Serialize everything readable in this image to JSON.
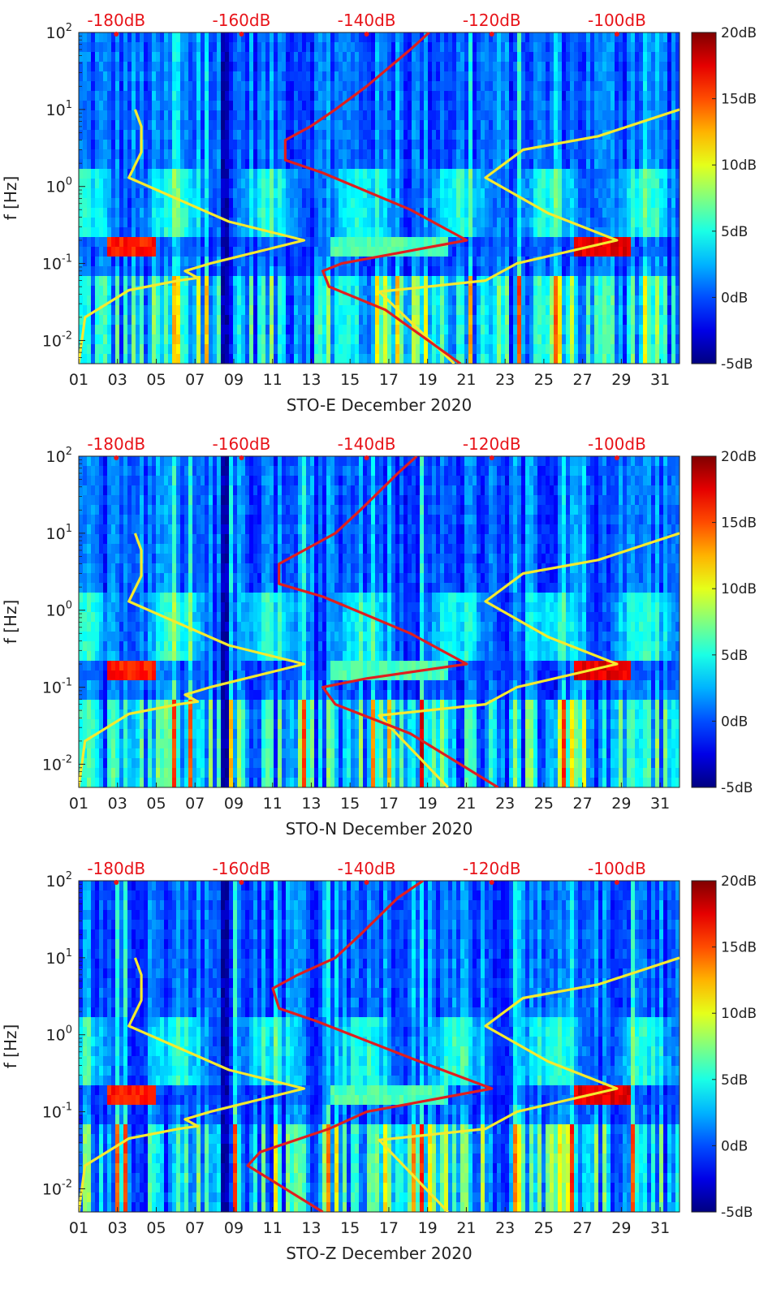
{
  "colors": {
    "colormap": "jet",
    "top_axis_text": "#e8141a",
    "yellow_curve": "#f5ea2e",
    "red_curve": "#e01e1e",
    "axis_text": "#222222"
  },
  "chart_data": [
    {
      "type": "heatmap",
      "title": "",
      "xlabel": "STO-E December 2020",
      "ylabel": "f [Hz]",
      "xlim": [
        1,
        32
      ],
      "ylim": [
        0.005,
        100
      ],
      "yscale": "log",
      "x_ticks": [
        "01",
        "03",
        "05",
        "07",
        "09",
        "11",
        "13",
        "15",
        "17",
        "19",
        "21",
        "23",
        "25",
        "27",
        "29",
        "31"
      ],
      "y_ticks": [
        "10^-2",
        "10^-1",
        "10^0",
        "10^1",
        "10^2"
      ],
      "top_axis": {
        "ticks": [
          "-180dB",
          "-160dB",
          "-140dB",
          "-120dB",
          "-100dB"
        ],
        "range": [
          -186,
          -90
        ]
      },
      "colorbar": {
        "ticks": [
          "-5dB",
          "0dB",
          "5dB",
          "10dB",
          "15dB",
          "20dB"
        ],
        "range": [
          -5,
          20
        ]
      },
      "series": [
        {
          "color": "yellow",
          "axis": "top",
          "points": [
            [
              -186,
              0.005
            ],
            [
              -185,
              0.02
            ],
            [
              -178,
              0.045
            ],
            [
              -170,
              0.06
            ],
            [
              -167,
              0.065
            ],
            [
              -169,
              0.08
            ],
            [
              -165,
              0.1
            ],
            [
              -150,
              0.2
            ],
            [
              -162,
              0.35
            ],
            [
              -178,
              1.3
            ],
            [
              -176,
              2.8
            ],
            [
              -176,
              6
            ],
            [
              -177,
              10
            ]
          ]
        },
        {
          "color": "yellow",
          "axis": "top",
          "points": [
            [
              -126,
              0.005
            ],
            [
              -138,
              0.043
            ],
            [
              -121,
              0.06
            ],
            [
              -116,
              0.1
            ],
            [
              -100,
              0.2
            ],
            [
              -111,
              0.45
            ],
            [
              -121,
              1.3
            ],
            [
              -115,
              3
            ],
            [
              -103,
              4.5
            ],
            [
              -90,
              10
            ]
          ]
        },
        {
          "color": "red",
          "axis": "top",
          "points": [
            [
              -125,
              0.005
            ],
            [
              -137,
              0.025
            ],
            [
              -146,
              0.05
            ],
            [
              -147,
              0.08
            ],
            [
              -144,
              0.1
            ],
            [
              -124,
              0.2
            ],
            [
              -133,
              0.5
            ],
            [
              -147,
              1.5
            ],
            [
              -153,
              2.2
            ],
            [
              -153,
              4
            ],
            [
              -149,
              6
            ],
            [
              -145,
              10
            ],
            [
              -140,
              20
            ],
            [
              -133,
              60
            ],
            [
              -130,
              100
            ]
          ]
        }
      ]
    },
    {
      "type": "heatmap",
      "title": "",
      "xlabel": "STO-N December 2020",
      "ylabel": "f [Hz]",
      "xlim": [
        1,
        32
      ],
      "ylim": [
        0.005,
        100
      ],
      "yscale": "log",
      "x_ticks": [
        "01",
        "03",
        "05",
        "07",
        "09",
        "11",
        "13",
        "15",
        "17",
        "19",
        "21",
        "23",
        "25",
        "27",
        "29",
        "31"
      ],
      "y_ticks": [
        "10^-2",
        "10^-1",
        "10^0",
        "10^1",
        "10^2"
      ],
      "top_axis": {
        "ticks": [
          "-180dB",
          "-160dB",
          "-140dB",
          "-120dB",
          "-100dB"
        ],
        "range": [
          -186,
          -90
        ]
      },
      "colorbar": {
        "ticks": [
          "-5dB",
          "0dB",
          "5dB",
          "10dB",
          "15dB",
          "20dB"
        ],
        "range": [
          -5,
          20
        ]
      },
      "series": [
        {
          "color": "yellow",
          "axis": "top",
          "points": [
            [
              -186,
              0.005
            ],
            [
              -185,
              0.02
            ],
            [
              -178,
              0.045
            ],
            [
              -170,
              0.06
            ],
            [
              -167,
              0.065
            ],
            [
              -169,
              0.08
            ],
            [
              -165,
              0.1
            ],
            [
              -150,
              0.2
            ],
            [
              -162,
              0.35
            ],
            [
              -178,
              1.3
            ],
            [
              -176,
              2.8
            ],
            [
              -176,
              6
            ],
            [
              -177,
              10
            ]
          ]
        },
        {
          "color": "yellow",
          "axis": "top",
          "points": [
            [
              -127,
              0.005
            ],
            [
              -138,
              0.043
            ],
            [
              -121,
              0.06
            ],
            [
              -116,
              0.1
            ],
            [
              -100,
              0.2
            ],
            [
              -111,
              0.45
            ],
            [
              -121,
              1.3
            ],
            [
              -115,
              3
            ],
            [
              -103,
              4.5
            ],
            [
              -90,
              10
            ]
          ]
        },
        {
          "color": "red",
          "axis": "top",
          "points": [
            [
              -119,
              0.005
            ],
            [
              -133,
              0.025
            ],
            [
              -145,
              0.06
            ],
            [
              -147,
              0.1
            ],
            [
              -140,
              0.13
            ],
            [
              -124,
              0.2
            ],
            [
              -133,
              0.5
            ],
            [
              -147,
              1.5
            ],
            [
              -154,
              2.2
            ],
            [
              -154,
              4
            ],
            [
              -150,
              6
            ],
            [
              -145,
              10
            ],
            [
              -141,
              20
            ],
            [
              -135,
              60
            ],
            [
              -132,
              100
            ]
          ]
        }
      ]
    },
    {
      "type": "heatmap",
      "title": "",
      "xlabel": "STO-Z December 2020",
      "ylabel": "f [Hz]",
      "xlim": [
        1,
        32
      ],
      "ylim": [
        0.005,
        100
      ],
      "yscale": "log",
      "x_ticks": [
        "01",
        "03",
        "05",
        "07",
        "09",
        "11",
        "13",
        "15",
        "17",
        "19",
        "21",
        "23",
        "25",
        "27",
        "29",
        "31"
      ],
      "y_ticks": [
        "10^-2",
        "10^-1",
        "10^0",
        "10^1",
        "10^2"
      ],
      "top_axis": {
        "ticks": [
          "-180dB",
          "-160dB",
          "-140dB",
          "-120dB",
          "-100dB"
        ],
        "range": [
          -186,
          -90
        ]
      },
      "colorbar": {
        "ticks": [
          "-5dB",
          "0dB",
          "5dB",
          "10dB",
          "15dB",
          "20dB"
        ],
        "range": [
          -5,
          20
        ]
      },
      "series": [
        {
          "color": "yellow",
          "axis": "top",
          "points": [
            [
              -186,
              0.005
            ],
            [
              -185,
              0.02
            ],
            [
              -178,
              0.045
            ],
            [
              -170,
              0.06
            ],
            [
              -167,
              0.065
            ],
            [
              -169,
              0.08
            ],
            [
              -165,
              0.1
            ],
            [
              -150,
              0.2
            ],
            [
              -162,
              0.35
            ],
            [
              -178,
              1.3
            ],
            [
              -176,
              2.8
            ],
            [
              -176,
              6
            ],
            [
              -177,
              10
            ]
          ]
        },
        {
          "color": "yellow",
          "axis": "top",
          "points": [
            [
              -127,
              0.005
            ],
            [
              -138,
              0.043
            ],
            [
              -121,
              0.06
            ],
            [
              -116,
              0.1
            ],
            [
              -100,
              0.2
            ],
            [
              -111,
              0.45
            ],
            [
              -121,
              1.3
            ],
            [
              -115,
              3
            ],
            [
              -103,
              4.5
            ],
            [
              -90,
              10
            ]
          ]
        },
        {
          "color": "red",
          "axis": "top",
          "points": [
            [
              -147,
              0.005
            ],
            [
              -159,
              0.02
            ],
            [
              -157,
              0.03
            ],
            [
              -146,
              0.06
            ],
            [
              -140,
              0.1
            ],
            [
              -120,
              0.2
            ],
            [
              -133,
              0.5
            ],
            [
              -148,
              1.5
            ],
            [
              -154,
              2.2
            ],
            [
              -155,
              4
            ],
            [
              -151,
              6
            ],
            [
              -145,
              10
            ],
            [
              -141,
              20
            ],
            [
              -135,
              60
            ],
            [
              -131,
              100
            ]
          ]
        }
      ]
    }
  ]
}
